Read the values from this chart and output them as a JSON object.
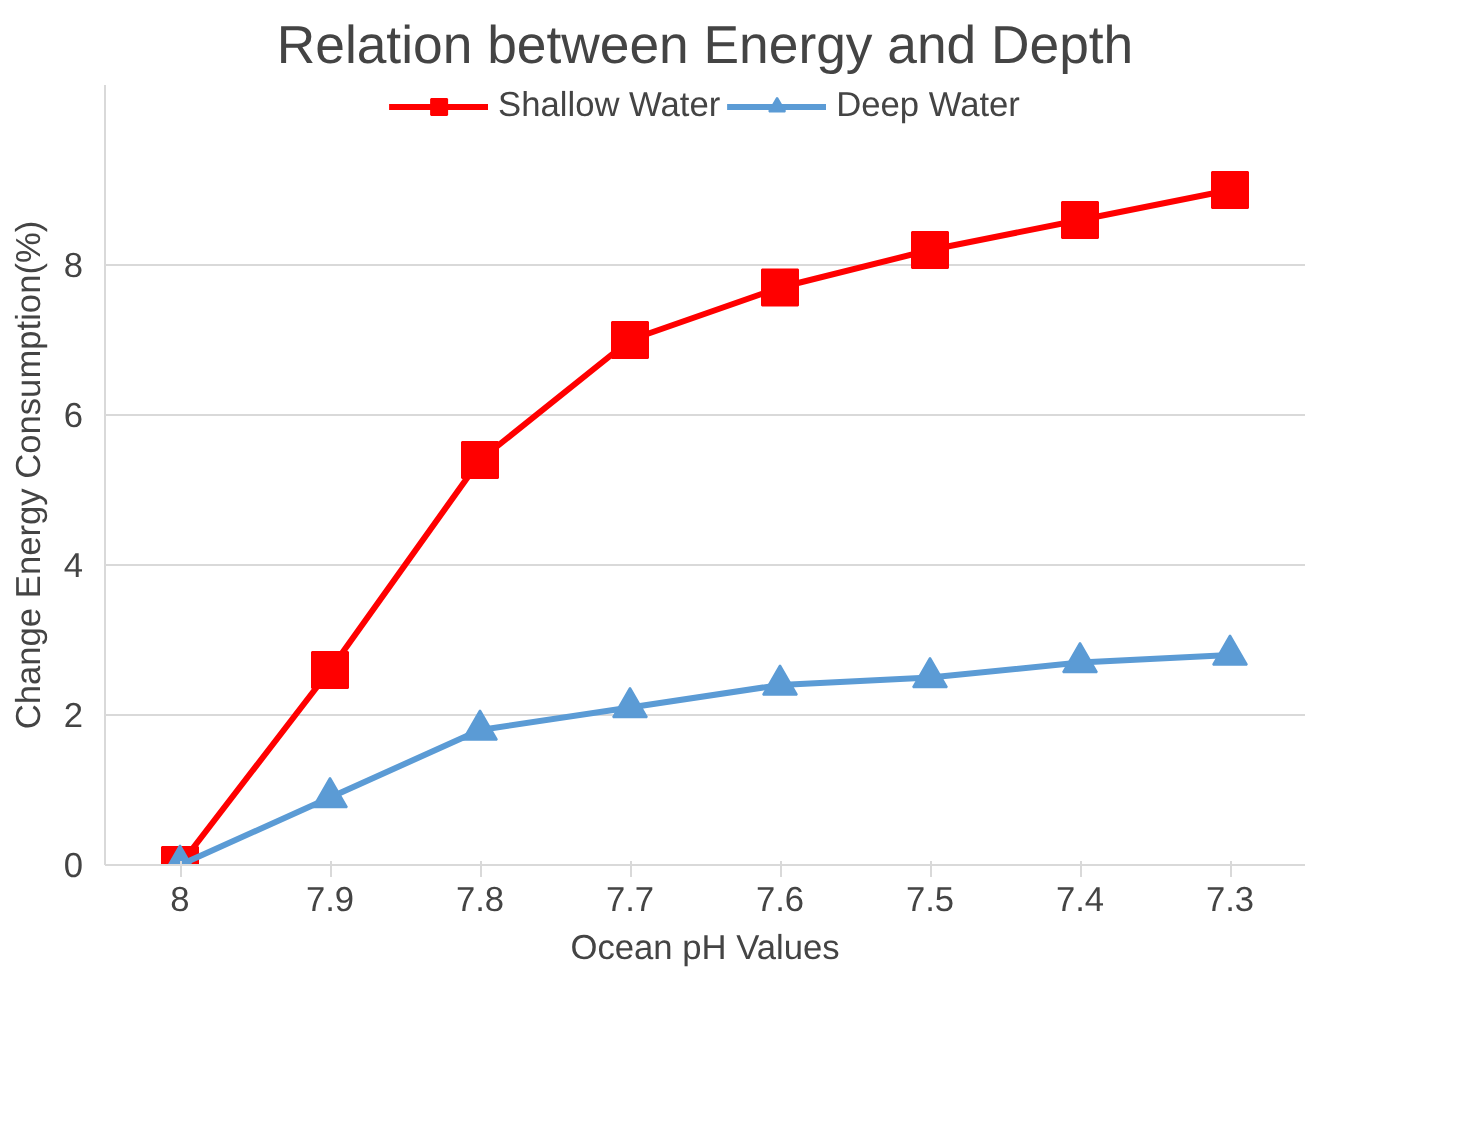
{
  "chart_data": {
    "type": "line",
    "title": "Relation between Energy and Depth",
    "xlabel": "Ocean pH Values",
    "ylabel": "Change Energy Consumption(%)",
    "categories": [
      "8",
      "7.9",
      "7.8",
      "7.7",
      "7.6",
      "7.5",
      "7.4",
      "7.3"
    ],
    "series": [
      {
        "name": "Shallow Water",
        "color": "#ff0000",
        "marker": "square",
        "values": [
          0,
          2.6,
          5.4,
          7.0,
          7.7,
          8.2,
          8.6,
          9.0
        ]
      },
      {
        "name": "Deep Water",
        "color": "#5b9bd5",
        "marker": "triangle",
        "values": [
          0,
          0.9,
          1.8,
          2.1,
          2.4,
          2.5,
          2.7,
          2.8
        ]
      }
    ],
    "ylim": [
      0,
      10.4
    ],
    "yticks": [
      0,
      2,
      4,
      6,
      8
    ],
    "grid": "y",
    "legend": "top"
  }
}
